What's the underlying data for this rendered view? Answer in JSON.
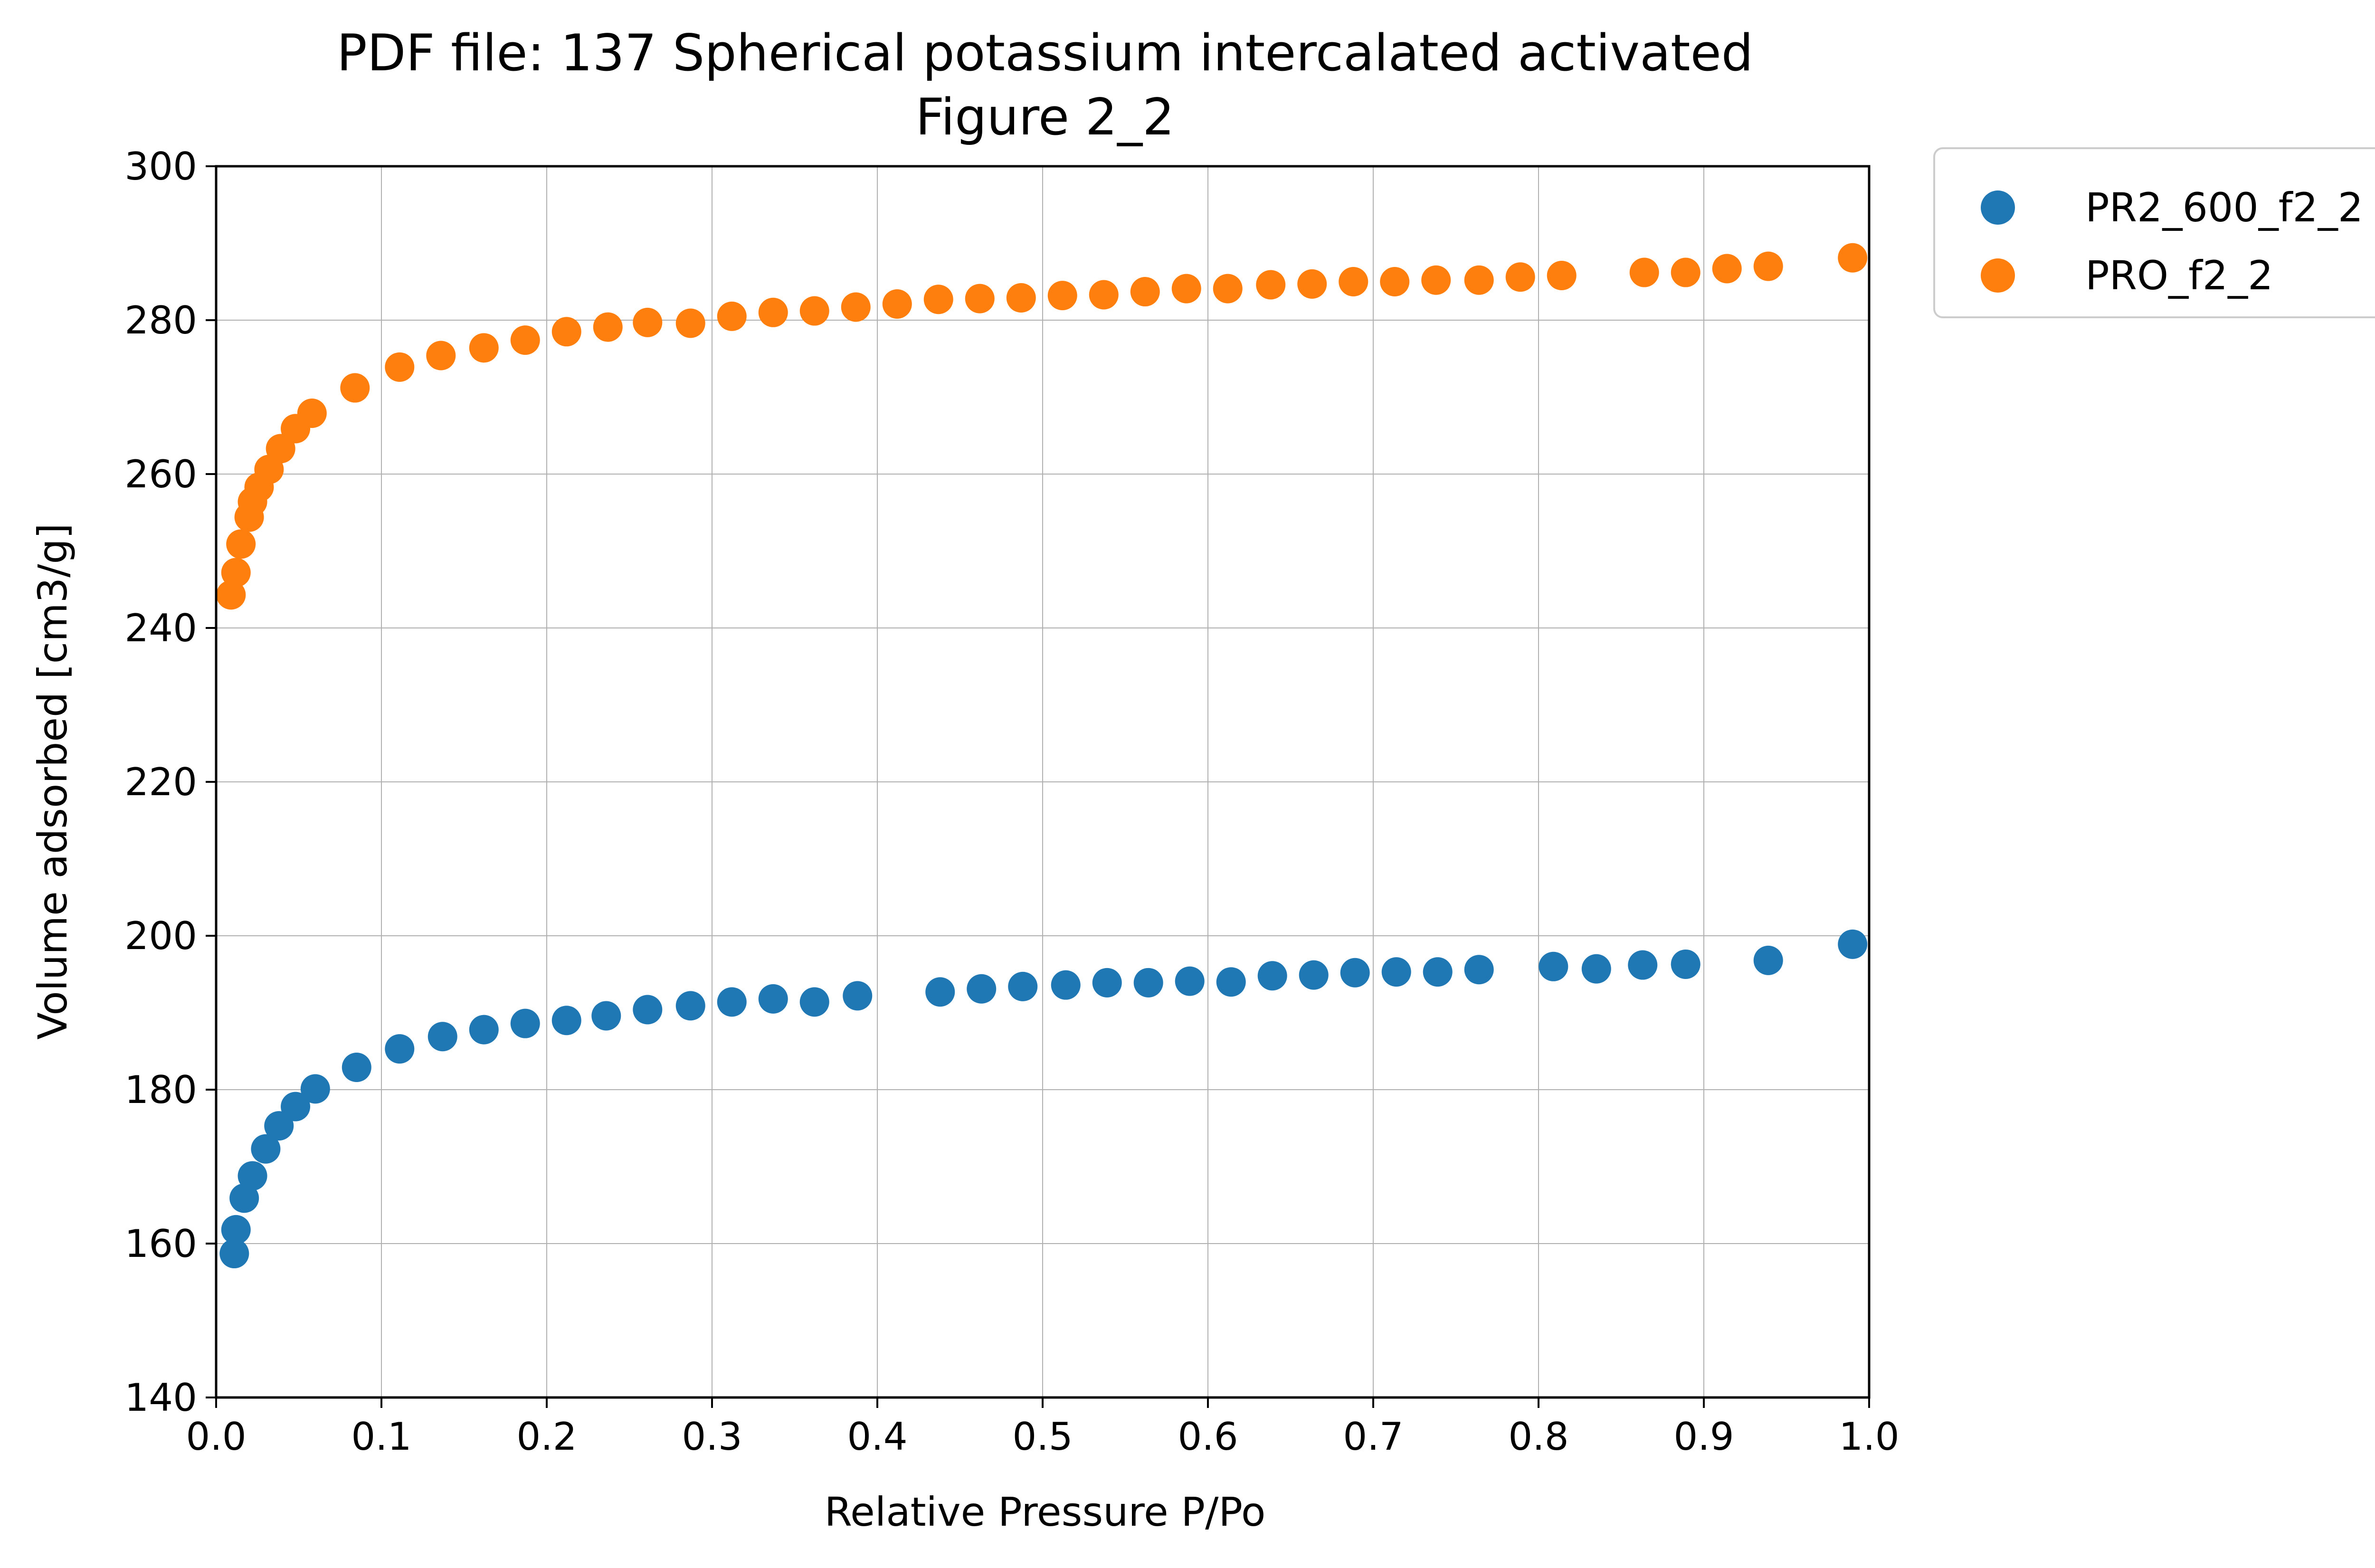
{
  "chart_data": {
    "type": "scatter",
    "title": "PDF file: 137 Spherical potassium intercalated activated",
    "subtitle": "Figure 2_2",
    "xlabel": "Relative Pressure P/Po",
    "ylabel": "Volume adsorbed [cm3/g]",
    "xlim": [
      0.0,
      1.0
    ],
    "ylim": [
      140,
      300
    ],
    "xticks": [
      "0.0",
      "0.1",
      "0.2",
      "0.3",
      "0.4",
      "0.5",
      "0.6",
      "0.7",
      "0.8",
      "0.9",
      "1.0"
    ],
    "yticks": [
      "140",
      "160",
      "180",
      "200",
      "220",
      "240",
      "260",
      "280",
      "300"
    ],
    "grid": true,
    "legend_position": "outside-top-right",
    "series": [
      {
        "name": "PR2_600_f2_2",
        "color": "#1f77b4",
        "x": [
          0.011,
          0.012,
          0.017,
          0.022,
          0.03,
          0.038,
          0.048,
          0.06,
          0.085,
          0.111,
          0.137,
          0.162,
          0.187,
          0.212,
          0.236,
          0.261,
          0.287,
          0.312,
          0.337,
          0.362,
          0.388,
          0.438,
          0.463,
          0.488,
          0.514,
          0.539,
          0.564,
          0.589,
          0.614,
          0.639,
          0.664,
          0.689,
          0.714,
          0.739,
          0.764,
          0.809,
          0.835,
          0.863,
          0.889,
          0.939,
          0.99
        ],
        "y": [
          158.7,
          161.8,
          165.9,
          168.8,
          172.3,
          175.3,
          177.8,
          180.1,
          182.9,
          185.3,
          186.9,
          187.8,
          188.6,
          189.0,
          189.6,
          190.4,
          190.9,
          191.4,
          191.8,
          191.4,
          192.2,
          192.7,
          193.1,
          193.4,
          193.6,
          193.9,
          193.9,
          194.1,
          194.0,
          194.8,
          194.9,
          195.2,
          195.3,
          195.3,
          195.6,
          196.0,
          195.7,
          196.2,
          196.3,
          196.8,
          198.9
        ]
      },
      {
        "name": "PRO_f2_2",
        "color": "#ff7f0e",
        "x": [
          0.009,
          0.012,
          0.015,
          0.02,
          0.022,
          0.026,
          0.032,
          0.039,
          0.048,
          0.058,
          0.084,
          0.111,
          0.136,
          0.162,
          0.187,
          0.212,
          0.237,
          0.261,
          0.287,
          0.312,
          0.337,
          0.362,
          0.387,
          0.412,
          0.437,
          0.462,
          0.487,
          0.512,
          0.537,
          0.562,
          0.587,
          0.612,
          0.638,
          0.663,
          0.688,
          0.713,
          0.738,
          0.764,
          0.789,
          0.814,
          0.864,
          0.889,
          0.914,
          0.939,
          0.99
        ]
      }
    ],
    "series_y_extra": [
      244.3,
      247.2,
      250.9,
      254.4,
      256.4,
      258.3,
      260.6,
      263.3,
      265.9,
      267.9,
      271.2,
      273.9,
      275.4,
      276.4,
      277.4,
      278.5,
      279.1,
      279.7,
      279.6,
      280.5,
      281.0,
      281.2,
      281.7,
      282.1,
      282.7,
      282.8,
      282.9,
      283.2,
      283.3,
      283.7,
      284.1,
      284.1,
      284.6,
      284.7,
      285.0,
      285.0,
      285.2,
      285.2,
      285.6,
      285.8,
      286.2,
      286.2,
      286.7,
      287.0,
      288.1
    ]
  }
}
